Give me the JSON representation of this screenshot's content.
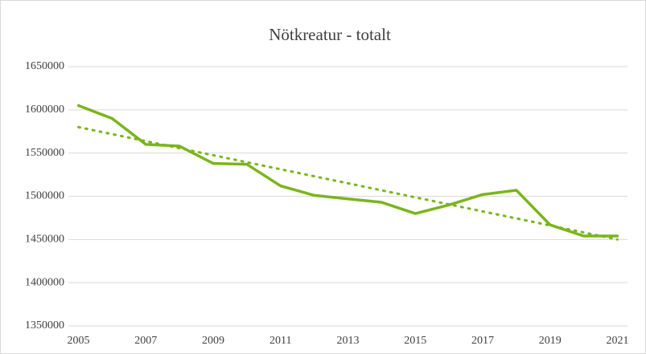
{
  "chart_data": {
    "type": "line",
    "title": "Nötkreatur - totalt",
    "x": [
      2005,
      2006,
      2007,
      2008,
      2009,
      2010,
      2011,
      2012,
      2013,
      2014,
      2015,
      2016,
      2017,
      2018,
      2019,
      2020,
      2021
    ],
    "series": [
      {
        "color": "#7ab51d",
        "values": [
          1605000,
          1590000,
          1560000,
          1558000,
          1538000,
          1537000,
          1512000,
          1501000,
          1497000,
          1493000,
          1480000,
          1490000,
          1502000,
          1507000,
          1467000,
          1454000,
          1454000
        ]
      }
    ],
    "trendline": {
      "x": [
        2005,
        2021
      ],
      "values": [
        1580000,
        1450000
      ],
      "color": "#7ab51d"
    },
    "xlim": [
      2004.7,
      2021.3
    ],
    "xticks": [
      2005,
      2007,
      2009,
      2011,
      2013,
      2015,
      2017,
      2019,
      2021
    ],
    "ylim": [
      1350000,
      1650000
    ],
    "yticks": [
      1350000,
      1400000,
      1450000,
      1500000,
      1550000,
      1600000,
      1650000
    ],
    "grid": true
  }
}
